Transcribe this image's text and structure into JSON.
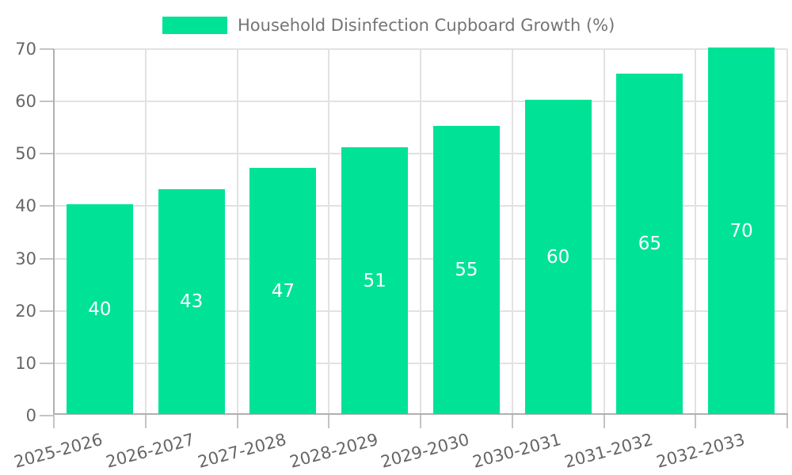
{
  "chart_data": {
    "type": "bar",
    "title": "Household Disinfection Cupboard Growth (%)",
    "legend_label": "Household Disinfection Cupboard Growth (%)",
    "legend_position": "top",
    "categories": [
      "2025-2026",
      "2026-2027",
      "2027-2028",
      "2028-2029",
      "2029-2030",
      "2030-2031",
      "2031-2032",
      "2032-2033"
    ],
    "values": [
      40,
      43,
      47,
      51,
      55,
      60,
      65,
      70
    ],
    "xlabel": "",
    "ylabel": "",
    "ylim": [
      0,
      70
    ],
    "yticks": [
      0,
      10,
      20,
      30,
      40,
      50,
      60,
      70
    ],
    "grid": true,
    "value_labels_shown": true,
    "colors": {
      "bar": "#00E396",
      "value_label": "#ffffff",
      "gridline": "#e2e2e2",
      "axis_line": "#b0b0b0",
      "tick_mark": "#c4c4c4",
      "tick_label": "#666666",
      "legend_text": "#757575",
      "background": "#ffffff"
    }
  }
}
